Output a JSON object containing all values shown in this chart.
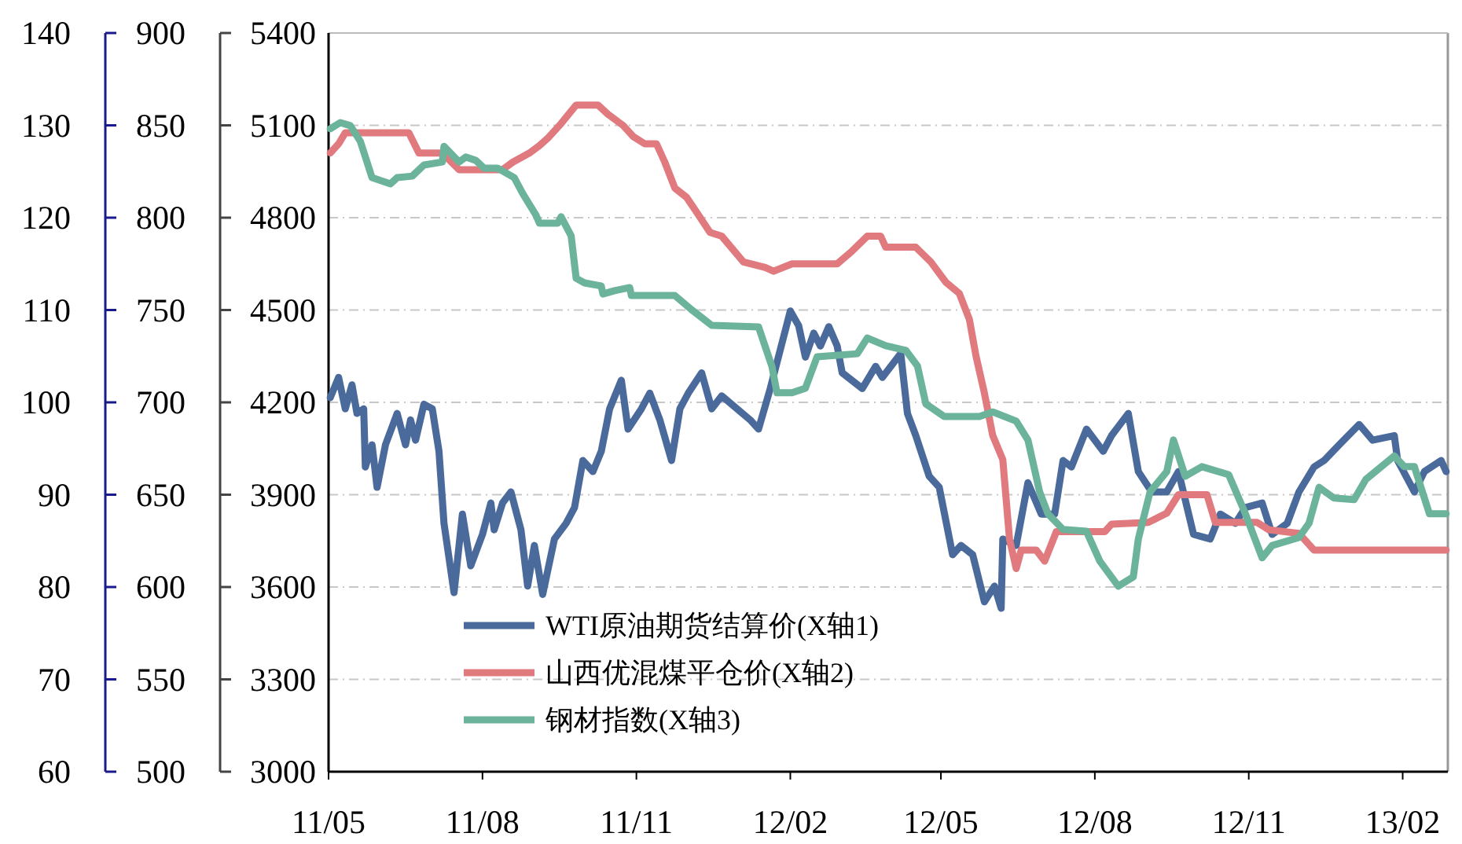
{
  "chart_data": {
    "type": "line",
    "xlim": [
      "2011-05-01",
      "2013-02-28"
    ],
    "xticks": [
      {
        "value": "2011-05",
        "label": "11/05"
      },
      {
        "value": "2011-08",
        "label": "11/08"
      },
      {
        "value": "2011-11",
        "label": "11/11"
      },
      {
        "value": "2012-02",
        "label": "12/02"
      },
      {
        "value": "2012-05",
        "label": "12/05"
      },
      {
        "value": "2012-08",
        "label": "12/08"
      },
      {
        "value": "2012-11",
        "label": "12/11"
      },
      {
        "value": "2013-02",
        "label": "13/02"
      }
    ],
    "ylim": [
      60,
      140
    ],
    "yticks": [
      60,
      70,
      80,
      90,
      100,
      110,
      120,
      130,
      140
    ],
    "y2lim": [
      500,
      900
    ],
    "y2ticks": [
      500,
      550,
      600,
      650,
      700,
      750,
      800,
      850,
      900
    ],
    "y3lim": [
      3000,
      5400
    ],
    "y3ticks": [
      3000,
      3300,
      3600,
      3900,
      4200,
      4500,
      4800,
      5100,
      5400
    ],
    "grid": "y",
    "legend": "bottom left",
    "series": [
      {
        "name": "WTI原油期货结算价(X轴1)",
        "color": "#4a6a9c",
        "axis": "y",
        "x": [
          "2011-05-02",
          "2011-05-07",
          "2011-05-11",
          "2011-05-15",
          "2011-05-18",
          "2011-05-22",
          "2011-05-23",
          "2011-05-27",
          "2011-05-30",
          "2011-06-04",
          "2011-06-11",
          "2011-06-16",
          "2011-06-19",
          "2011-06-22",
          "2011-06-27",
          "2011-07-02",
          "2011-07-06",
          "2011-07-09",
          "2011-07-15",
          "2011-07-20",
          "2011-07-25",
          "2011-08-01",
          "2011-08-06",
          "2011-08-08",
          "2011-08-13",
          "2011-08-18",
          "2011-08-24",
          "2011-08-28",
          "2011-09-01",
          "2011-09-06",
          "2011-09-13",
          "2011-09-20",
          "2011-09-25",
          "2011-09-30",
          "2011-10-06",
          "2011-10-11",
          "2011-10-16",
          "2011-10-23",
          "2011-10-27",
          "2011-11-04",
          "2011-11-09",
          "2011-11-15",
          "2011-11-22",
          "2011-11-27",
          "2011-12-02",
          "2011-12-10",
          "2011-12-16",
          "2011-12-22",
          "2012-01-08",
          "2012-01-13",
          "2012-01-20",
          "2012-02-01",
          "2012-02-06",
          "2012-02-10",
          "2012-02-15",
          "2012-02-19",
          "2012-02-24",
          "2012-02-29",
          "2012-03-03",
          "2012-03-15",
          "2012-03-23",
          "2012-03-27",
          "2012-04-07",
          "2012-04-11",
          "2012-04-16",
          "2012-04-24",
          "2012-04-30",
          "2012-05-08",
          "2012-05-13",
          "2012-05-20",
          "2012-05-27",
          "2012-06-02",
          "2012-06-06",
          "2012-06-07",
          "2012-06-15",
          "2012-06-22",
          "2012-06-30",
          "2012-07-08",
          "2012-07-13",
          "2012-07-18",
          "2012-07-27",
          "2012-08-06",
          "2012-08-11",
          "2012-08-21",
          "2012-08-27",
          "2012-09-04",
          "2012-09-13",
          "2012-09-20",
          "2012-09-29",
          "2012-10-09",
          "2012-10-15",
          "2012-10-24",
          "2012-10-30",
          "2012-11-09",
          "2012-11-15",
          "2012-11-24",
          "2012-12-01",
          "2012-12-10",
          "2012-12-16",
          "2012-12-25",
          "2013-01-06",
          "2013-01-14",
          "2013-01-27",
          "2013-01-29",
          "2013-02-08",
          "2013-02-14",
          "2013-02-24",
          "2013-02-27"
        ],
        "values": [
          100.5,
          102.7,
          99.3,
          101.9,
          98.8,
          99.3,
          93.0,
          95.4,
          90.8,
          95.4,
          98.8,
          95.4,
          98.1,
          95.9,
          99.8,
          99.3,
          94.7,
          86.9,
          79.4,
          87.9,
          82.3,
          85.7,
          89.1,
          86.2,
          89.1,
          90.3,
          86.2,
          80.1,
          84.5,
          79.2,
          85.2,
          86.9,
          88.6,
          93.7,
          92.5,
          94.7,
          99.3,
          102.4,
          97.1,
          99.3,
          101.0,
          98.1,
          93.7,
          99.3,
          101.0,
          103.2,
          99.3,
          100.7,
          98.1,
          97.1,
          101.5,
          109.9,
          108.3,
          104.9,
          107.5,
          106.1,
          108.2,
          106.1,
          103.2,
          101.5,
          103.9,
          102.7,
          105.3,
          98.8,
          96.4,
          92.0,
          90.8,
          83.5,
          84.5,
          83.5,
          78.4,
          80.1,
          77.7,
          85.2,
          84.5,
          91.3,
          87.9,
          87.9,
          93.7,
          93.0,
          97.1,
          94.7,
          96.4,
          98.8,
          92.5,
          90.3,
          90.3,
          92.5,
          85.7,
          85.2,
          87.9,
          86.9,
          88.6,
          89.1,
          85.7,
          86.9,
          90.3,
          93.0,
          93.7,
          95.4,
          97.6,
          95.9,
          96.4,
          93.7,
          90.3,
          92.5,
          93.7,
          92.5
        ]
      },
      {
        "name": "山西优混煤平仓价(X轴2)",
        "color": "#e07a7e",
        "axis": "y2",
        "x": [
          "2011-05-02",
          "2011-05-07",
          "2011-05-11",
          "2011-06-18",
          "2011-06-24",
          "2011-07-08",
          "2011-07-18",
          "2011-08-13",
          "2011-08-19",
          "2011-08-29",
          "2011-09-04",
          "2011-09-09",
          "2011-09-17",
          "2011-09-26",
          "2011-10-09",
          "2011-10-15",
          "2011-10-24",
          "2011-10-30",
          "2011-11-06",
          "2011-11-13",
          "2011-11-18",
          "2011-11-24",
          "2011-12-01",
          "2011-12-07",
          "2011-12-15",
          "2011-12-22",
          "2012-01-04",
          "2012-01-17",
          "2012-01-22",
          "2012-02-02",
          "2012-02-29",
          "2012-03-09",
          "2012-03-18",
          "2012-03-26",
          "2012-03-29",
          "2012-04-16",
          "2012-04-25",
          "2012-05-04",
          "2012-05-12",
          "2012-05-18",
          "2012-05-22",
          "2012-05-27",
          "2012-06-01",
          "2012-06-07",
          "2012-06-11",
          "2012-06-15",
          "2012-06-18",
          "2012-06-27",
          "2012-07-02",
          "2012-07-09",
          "2012-08-07",
          "2012-08-11",
          "2012-09-02",
          "2012-09-13",
          "2012-09-20",
          "2012-10-07",
          "2012-10-12",
          "2012-11-06",
          "2012-11-13",
          "2012-12-01",
          "2012-12-10",
          "2013-02-27"
        ],
        "values": [
          835,
          840,
          846,
          846,
          835,
          835,
          826,
          826,
          830,
          835,
          839,
          843,
          851,
          861,
          861,
          856,
          850,
          844,
          840,
          840,
          830,
          816,
          811,
          803,
          792,
          790,
          776,
          773,
          771,
          775,
          775,
          782,
          790,
          790,
          784,
          784,
          776,
          765,
          759,
          745,
          725,
          705,
          682,
          669,
          626,
          610,
          620,
          620,
          614,
          630,
          630,
          634,
          635,
          640,
          650,
          650,
          635,
          635,
          631,
          629,
          620,
          620
        ]
      },
      {
        "name": "钢材指数(X轴3)",
        "color": "#6bb39a",
        "axis": "y3",
        "x": [
          "2011-05-02",
          "2011-05-08",
          "2011-05-14",
          "2011-05-20",
          "2011-05-27",
          "2011-06-07",
          "2011-06-11",
          "2011-06-20",
          "2011-06-27",
          "2011-07-08",
          "2011-07-09",
          "2011-07-18",
          "2011-07-22",
          "2011-07-28",
          "2011-08-02",
          "2011-08-10",
          "2011-08-20",
          "2011-08-25",
          "2011-09-02",
          "2011-09-04",
          "2011-09-15",
          "2011-09-17",
          "2011-09-23",
          "2011-09-26",
          "2011-10-01",
          "2011-10-11",
          "2011-10-12",
          "2011-10-19",
          "2011-10-28",
          "2011-10-29",
          "2011-11-24",
          "2011-12-04",
          "2011-12-16",
          "2012-01-13",
          "2012-01-21",
          "2012-01-24",
          "2012-02-02",
          "2012-02-10",
          "2012-02-17",
          "2012-03-12",
          "2012-03-18",
          "2012-03-29",
          "2012-04-10",
          "2012-04-17",
          "2012-04-22",
          "2012-05-03",
          "2012-05-24",
          "2012-06-01",
          "2012-06-15",
          "2012-06-22",
          "2012-06-29",
          "2012-07-04",
          "2012-07-13",
          "2012-07-27",
          "2012-08-04",
          "2012-08-15",
          "2012-08-24",
          "2012-08-27",
          "2012-09-03",
          "2012-09-13",
          "2012-09-17",
          "2012-09-24",
          "2012-10-04",
          "2012-10-20",
          "2012-10-30",
          "2012-11-09",
          "2012-11-15",
          "2012-12-01",
          "2012-12-07",
          "2012-12-13",
          "2012-12-22",
          "2013-01-03",
          "2013-01-10",
          "2013-01-27",
          "2013-02-02",
          "2013-02-08",
          "2013-02-17",
          "2013-02-27"
        ],
        "values": [
          5089,
          5109,
          5099,
          5048,
          4930,
          4910,
          4930,
          4935,
          4971,
          4981,
          5032,
          4981,
          4997,
          4986,
          4961,
          4961,
          4930,
          4879,
          4808,
          4782,
          4782,
          4803,
          4741,
          4603,
          4588,
          4578,
          4552,
          4563,
          4573,
          4547,
          4547,
          4501,
          4450,
          4445,
          4317,
          4231,
          4231,
          4246,
          4348,
          4358,
          4409,
          4384,
          4369,
          4318,
          4195,
          4154,
          4154,
          4169,
          4139,
          4078,
          3909,
          3838,
          3787,
          3781,
          3684,
          3603,
          3633,
          3756,
          3909,
          3975,
          4078,
          3960,
          3991,
          3965,
          3838,
          3695,
          3735,
          3761,
          3807,
          3924,
          3889,
          3884,
          3950,
          4026,
          3991,
          3991,
          3838,
          3838
        ]
      }
    ]
  }
}
